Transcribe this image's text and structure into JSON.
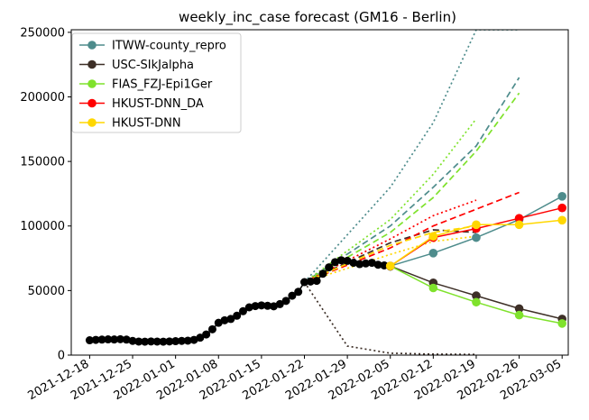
{
  "chart_data": {
    "type": "line",
    "title": "weekly_inc_case forecast (GM16 - Berlin)",
    "xlabel": "",
    "ylabel": "",
    "xlim": [
      "2021-12-15",
      "2022-03-06"
    ],
    "ylim": [
      0,
      252000
    ],
    "x_ticks": [
      "2021-12-18",
      "2021-12-25",
      "2022-01-01",
      "2022-01-08",
      "2022-01-15",
      "2022-01-22",
      "2022-01-29",
      "2022-02-05",
      "2022-02-12",
      "2022-02-19",
      "2022-02-26",
      "2022-03-05"
    ],
    "y_ticks": [
      0,
      50000,
      100000,
      150000,
      200000,
      250000
    ],
    "grid": false,
    "legend_position": "top-left",
    "observed": {
      "color": "#000000",
      "x": [
        "2021-12-18",
        "2021-12-19",
        "2021-12-20",
        "2021-12-21",
        "2021-12-22",
        "2021-12-23",
        "2021-12-24",
        "2021-12-25",
        "2021-12-26",
        "2021-12-27",
        "2021-12-28",
        "2021-12-29",
        "2021-12-30",
        "2021-12-31",
        "2022-01-01",
        "2022-01-02",
        "2022-01-03",
        "2022-01-04",
        "2022-01-05",
        "2022-01-06",
        "2022-01-07",
        "2022-01-08",
        "2022-01-09",
        "2022-01-10",
        "2022-01-11",
        "2022-01-12",
        "2022-01-13",
        "2022-01-14",
        "2022-01-15",
        "2022-01-16",
        "2022-01-17",
        "2022-01-18",
        "2022-01-19",
        "2022-01-20",
        "2022-01-21",
        "2022-01-22",
        "2022-01-23",
        "2022-01-24",
        "2022-01-25",
        "2022-01-26",
        "2022-01-27",
        "2022-01-28",
        "2022-01-29",
        "2022-01-30",
        "2022-01-31",
        "2022-02-01",
        "2022-02-02",
        "2022-02-03",
        "2022-02-04",
        "2022-02-05"
      ],
      "y": [
        11500,
        11800,
        12000,
        12200,
        12100,
        12300,
        12000,
        11000,
        10500,
        10400,
        10600,
        10500,
        10400,
        10600,
        10800,
        11000,
        11200,
        11800,
        13500,
        16000,
        20000,
        25000,
        27000,
        28000,
        30500,
        34000,
        37000,
        38000,
        38500,
        38200,
        37800,
        39500,
        42000,
        46000,
        49000,
        56500,
        57000,
        57500,
        63000,
        68000,
        72000,
        73500,
        73000,
        71500,
        70500,
        71000,
        71500,
        70000,
        69500,
        68500
      ]
    },
    "series": [
      {
        "name": "ITWW-county_repro",
        "color": "#4e8c8c",
        "median": {
          "x": [
            "2022-02-05",
            "2022-02-12",
            "2022-02-19",
            "2022-02-26",
            "2022-03-05"
          ],
          "y": [
            69000,
            79000,
            91000,
            105000,
            123000
          ]
        },
        "upper": {
          "x": [
            "2022-01-22",
            "2022-02-05",
            "2022-02-12",
            "2022-02-19",
            "2022-02-26"
          ],
          "y": [
            56500,
            100000,
            130000,
            162000,
            215000
          ]
        },
        "upper_outer": {
          "x": [
            "2022-01-22",
            "2022-02-05",
            "2022-02-12",
            "2022-02-19",
            "2022-02-26"
          ],
          "y": [
            56500,
            130000,
            180000,
            252000,
            252000
          ]
        }
      },
      {
        "name": "USC-SIkJalpha",
        "color": "#3d2f27",
        "median": {
          "x": [
            "2022-02-05",
            "2022-02-12",
            "2022-02-19",
            "2022-02-26",
            "2022-03-05"
          ],
          "y": [
            69000,
            56000,
            46000,
            36000,
            28000
          ]
        },
        "upper": {
          "x": [
            "2022-01-22",
            "2022-02-05",
            "2022-02-12",
            "2022-02-19"
          ],
          "y": [
            56500,
            87000,
            97000,
            95000
          ]
        },
        "lower_outer": {
          "x": [
            "2022-01-22",
            "2022-01-29",
            "2022-02-05",
            "2022-02-12",
            "2022-02-19"
          ],
          "y": [
            56500,
            7000,
            1500,
            800,
            500
          ]
        }
      },
      {
        "name": "FIAS_FZJ-Epi1Ger",
        "color": "#7fe22c",
        "median": {
          "x": [
            "2022-02-05",
            "2022-02-12",
            "2022-02-19",
            "2022-02-26",
            "2022-03-05"
          ],
          "y": [
            69000,
            52000,
            41000,
            31000,
            24500
          ]
        },
        "upper": {
          "x": [
            "2022-01-22",
            "2022-02-05",
            "2022-02-12",
            "2022-02-19",
            "2022-02-26"
          ],
          "y": [
            56500,
            95000,
            122000,
            158000,
            203000
          ]
        },
        "upper_outer": {
          "x": [
            "2022-01-22",
            "2022-02-05",
            "2022-02-12",
            "2022-02-19"
          ],
          "y": [
            56500,
            105000,
            140000,
            183000
          ]
        }
      },
      {
        "name": "HKUST-DNN_DA",
        "color": "#ff0000",
        "median": {
          "x": [
            "2022-02-05",
            "2022-02-12",
            "2022-02-19",
            "2022-02-26",
            "2022-03-05"
          ],
          "y": [
            69000,
            91000,
            98000,
            106000,
            114000
          ]
        },
        "upper": {
          "x": [
            "2022-01-22",
            "2022-02-05",
            "2022-02-12",
            "2022-02-19",
            "2022-02-26"
          ],
          "y": [
            56500,
            83000,
            100000,
            113000,
            126000
          ]
        },
        "upper_outer": {
          "x": [
            "2022-01-22",
            "2022-02-05",
            "2022-02-12",
            "2022-02-19"
          ],
          "y": [
            56500,
            90000,
            108000,
            120000
          ]
        }
      },
      {
        "name": "HKUST-DNN",
        "color": "#ffd700",
        "median": {
          "x": [
            "2022-02-05",
            "2022-02-12",
            "2022-02-19",
            "2022-02-26",
            "2022-03-05"
          ],
          "y": [
            69000,
            92000,
            101000,
            101000,
            104500
          ]
        },
        "upper": {
          "x": [
            "2022-01-22",
            "2022-02-05",
            "2022-02-12",
            "2022-02-19"
          ],
          "y": [
            56500,
            85000,
            95000,
            100000
          ]
        },
        "upper_outer": {
          "x": [
            "2022-01-22",
            "2022-02-05",
            "2022-02-12",
            "2022-02-19"
          ],
          "y": [
            56500,
            78000,
            88000,
            92000
          ]
        }
      }
    ]
  }
}
